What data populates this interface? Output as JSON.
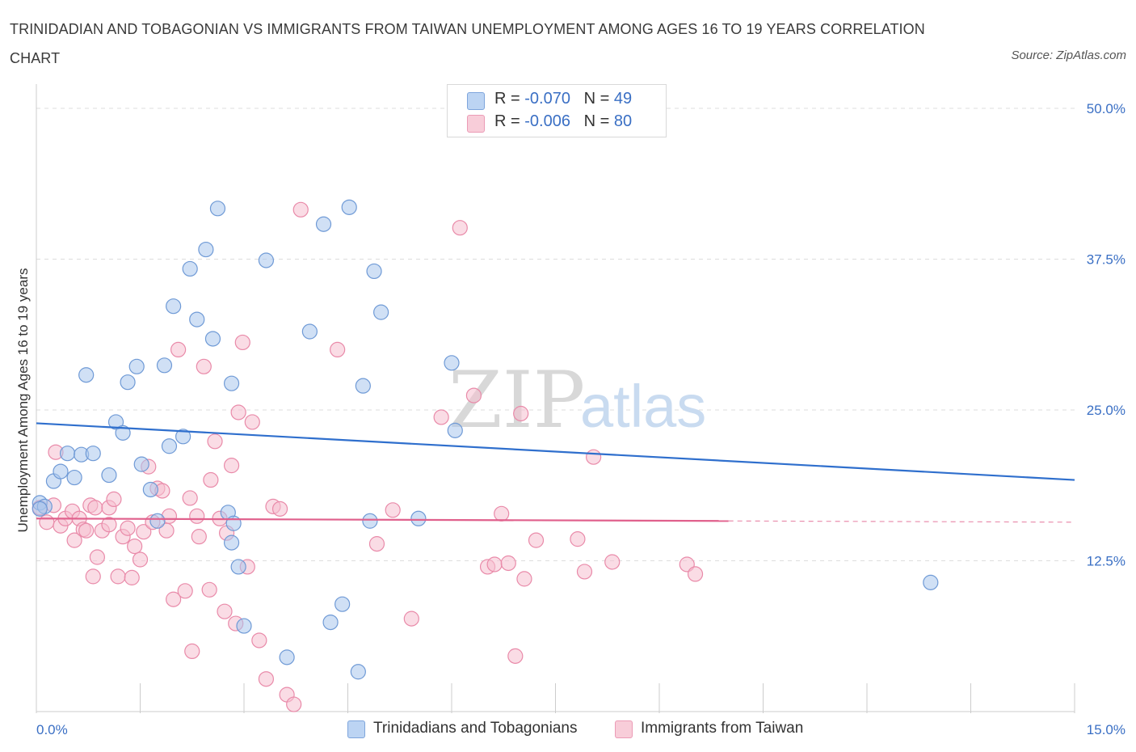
{
  "header": {
    "title": "TRINIDADIAN AND TOBAGONIAN VS IMMIGRANTS FROM TAIWAN UNEMPLOYMENT AMONG AGES 16 TO 19 YEARS CORRELATION CHART",
    "source": "Source: ZipAtlas.com"
  },
  "legend": {
    "row1": {
      "r_label": "R = ",
      "r_value": "-0.070",
      "n_label": "N = ",
      "n_value": "49"
    },
    "row2": {
      "r_label": "R = ",
      "r_value": "-0.006",
      "n_label": "N = ",
      "n_value": "80"
    }
  },
  "watermark": {
    "zip": "ZIP",
    "atlas": "atlas"
  },
  "colors": {
    "blue_fill": "#a9c6ec",
    "blue_stroke": "#6f9ad6",
    "blue_line": "#2f6fcd",
    "pink_fill": "#f6bfd0",
    "pink_stroke": "#e98aa9",
    "pink_line": "#e0608c",
    "grid": "#dddddd",
    "axis_text": "#3a6fc4"
  },
  "chart_data": {
    "type": "scatter",
    "title": "TRINIDADIAN AND TOBAGONIAN VS IMMIGRANTS FROM TAIWAN UNEMPLOYMENT AMONG AGES 16 TO 19 YEARS CORRELATION CHART",
    "xlabel": "",
    "ylabel": "Unemployment Among Ages 16 to 19 years",
    "xlim": [
      0,
      15
    ],
    "ylim": [
      0,
      50
    ],
    "x_tick_labels": [
      "0.0%",
      "15.0%"
    ],
    "y_ticks": [
      12.5,
      25,
      37.5,
      50
    ],
    "y_tick_labels": [
      "12.5%",
      "25.0%",
      "37.5%",
      "50.0%"
    ],
    "grid": true,
    "legend_position": "top-center",
    "series": [
      {
        "name": "Trinidadians and Tobagonians",
        "color": "#a9c6ec",
        "R": -0.07,
        "N": 49,
        "trend": {
          "x": [
            0,
            15
          ],
          "y": [
            23.9,
            19.2
          ],
          "dashed_from": null
        },
        "points": [
          [
            0.05,
            17.3
          ],
          [
            0.12,
            17.0
          ],
          [
            0.25,
            19.1
          ],
          [
            0.35,
            19.9
          ],
          [
            0.45,
            21.4
          ],
          [
            0.55,
            19.4
          ],
          [
            0.65,
            21.3
          ],
          [
            0.72,
            27.9
          ],
          [
            0.82,
            21.4
          ],
          [
            1.05,
            19.6
          ],
          [
            1.15,
            24.0
          ],
          [
            1.25,
            23.1
          ],
          [
            1.32,
            27.3
          ],
          [
            1.45,
            28.6
          ],
          [
            1.52,
            20.5
          ],
          [
            1.65,
            18.4
          ],
          [
            1.75,
            15.8
          ],
          [
            1.85,
            28.7
          ],
          [
            1.92,
            22.0
          ],
          [
            1.98,
            33.6
          ],
          [
            2.12,
            22.8
          ],
          [
            2.22,
            36.7
          ],
          [
            2.32,
            32.5
          ],
          [
            2.45,
            38.3
          ],
          [
            2.55,
            30.9
          ],
          [
            2.62,
            41.7
          ],
          [
            2.77,
            16.5
          ],
          [
            2.85,
            15.6
          ],
          [
            2.92,
            12.0
          ],
          [
            3.0,
            7.1
          ],
          [
            2.82,
            27.2
          ],
          [
            2.82,
            14.0
          ],
          [
            3.32,
            37.4
          ],
          [
            3.62,
            4.5
          ],
          [
            3.95,
            31.5
          ],
          [
            4.15,
            40.4
          ],
          [
            4.25,
            7.4
          ],
          [
            4.42,
            8.9
          ],
          [
            4.52,
            41.8
          ],
          [
            4.65,
            3.3
          ],
          [
            4.72,
            27.0
          ],
          [
            4.82,
            15.8
          ],
          [
            4.88,
            36.5
          ],
          [
            4.98,
            33.1
          ],
          [
            5.52,
            16.0
          ],
          [
            6.0,
            28.9
          ],
          [
            6.05,
            23.3
          ],
          [
            12.92,
            10.7
          ],
          [
            0.05,
            16.8
          ]
        ]
      },
      {
        "name": "Immigrants from Taiwan",
        "color": "#f6bfd0",
        "R": -0.006,
        "N": 80,
        "trend": {
          "x": [
            0,
            15
          ],
          "y": [
            16.0,
            15.7
          ],
          "solid_until": 10.0
        },
        "points": [
          [
            0.05,
            16.9
          ],
          [
            0.15,
            15.7
          ],
          [
            0.25,
            17.1
          ],
          [
            0.28,
            21.5
          ],
          [
            0.35,
            15.4
          ],
          [
            0.42,
            16.0
          ],
          [
            0.52,
            16.6
          ],
          [
            0.55,
            14.2
          ],
          [
            0.62,
            16.0
          ],
          [
            0.68,
            15.1
          ],
          [
            0.72,
            15.0
          ],
          [
            0.78,
            17.1
          ],
          [
            0.82,
            11.2
          ],
          [
            0.85,
            16.9
          ],
          [
            0.88,
            12.8
          ],
          [
            0.95,
            15.0
          ],
          [
            1.05,
            16.9
          ],
          [
            1.12,
            17.6
          ],
          [
            1.18,
            11.2
          ],
          [
            1.25,
            14.5
          ],
          [
            1.32,
            15.2
          ],
          [
            1.38,
            11.1
          ],
          [
            1.42,
            13.7
          ],
          [
            1.5,
            12.6
          ],
          [
            1.55,
            14.9
          ],
          [
            1.62,
            20.3
          ],
          [
            1.68,
            15.7
          ],
          [
            1.75,
            18.5
          ],
          [
            1.82,
            18.3
          ],
          [
            1.88,
            15.0
          ],
          [
            1.92,
            16.2
          ],
          [
            1.98,
            9.3
          ],
          [
            2.05,
            30.0
          ],
          [
            2.15,
            10.0
          ],
          [
            2.22,
            17.7
          ],
          [
            2.25,
            5.0
          ],
          [
            2.32,
            16.2
          ],
          [
            2.35,
            14.5
          ],
          [
            2.42,
            28.6
          ],
          [
            2.5,
            10.1
          ],
          [
            2.52,
            19.2
          ],
          [
            2.58,
            22.4
          ],
          [
            2.65,
            16.0
          ],
          [
            2.72,
            8.3
          ],
          [
            2.75,
            14.8
          ],
          [
            2.82,
            20.4
          ],
          [
            2.88,
            7.3
          ],
          [
            2.92,
            24.8
          ],
          [
            2.98,
            30.6
          ],
          [
            3.05,
            12.0
          ],
          [
            3.12,
            24.0
          ],
          [
            3.22,
            5.9
          ],
          [
            3.32,
            2.7
          ],
          [
            3.42,
            17.0
          ],
          [
            3.52,
            16.8
          ],
          [
            3.62,
            1.4
          ],
          [
            3.72,
            0.6
          ],
          [
            3.82,
            41.6
          ],
          [
            4.35,
            30.0
          ],
          [
            4.92,
            13.9
          ],
          [
            5.15,
            16.7
          ],
          [
            5.42,
            7.7
          ],
          [
            5.85,
            24.4
          ],
          [
            6.12,
            40.1
          ],
          [
            6.32,
            26.2
          ],
          [
            6.52,
            12.0
          ],
          [
            6.62,
            12.2
          ],
          [
            6.72,
            16.4
          ],
          [
            6.82,
            12.3
          ],
          [
            6.92,
            4.6
          ],
          [
            7.0,
            24.7
          ],
          [
            7.05,
            11.0
          ],
          [
            7.22,
            14.2
          ],
          [
            7.82,
            14.3
          ],
          [
            7.92,
            11.6
          ],
          [
            8.05,
            21.1
          ],
          [
            8.32,
            12.4
          ],
          [
            9.4,
            12.2
          ],
          [
            9.52,
            11.4
          ],
          [
            1.05,
            15.5
          ]
        ]
      }
    ]
  },
  "bottom_legend": {
    "item1": "Trinidadians and Tobagonians",
    "item2": "Immigrants from Taiwan"
  }
}
